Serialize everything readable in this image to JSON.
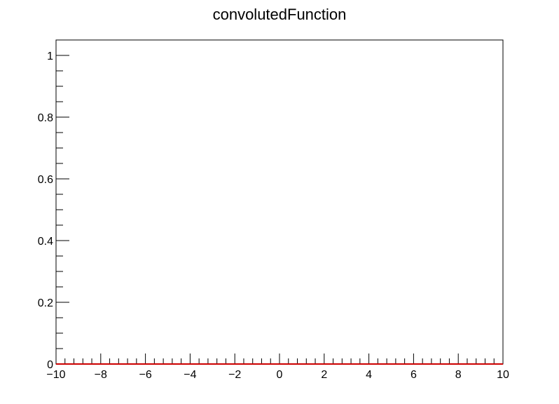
{
  "chart_data": {
    "type": "line",
    "title": "convolutedFunction",
    "xlabel": "",
    "ylabel": "",
    "xlim": [
      -10,
      10
    ],
    "ylim": [
      0,
      1.05
    ],
    "x_ticks": [
      -10,
      -8,
      -6,
      -4,
      -2,
      0,
      2,
      4,
      6,
      8,
      10
    ],
    "x_tick_labels": [
      "−10",
      "−8",
      "−6",
      "−4",
      "−2",
      "0",
      "2",
      "4",
      "6",
      "8",
      "10"
    ],
    "y_ticks": [
      0,
      0.2,
      0.4,
      0.6,
      0.8,
      1
    ],
    "y_tick_labels": [
      "0",
      "0.2",
      "0.4",
      "0.6",
      "0.8",
      "1"
    ],
    "grid": false,
    "series": [
      {
        "color": "#cc0000",
        "x": [
          -10,
          -8,
          -6,
          -4,
          -2,
          0,
          2,
          4,
          6,
          8,
          10
        ],
        "values": [
          0,
          0,
          0,
          0,
          0,
          0,
          0,
          0,
          0,
          0,
          0
        ]
      }
    ]
  }
}
